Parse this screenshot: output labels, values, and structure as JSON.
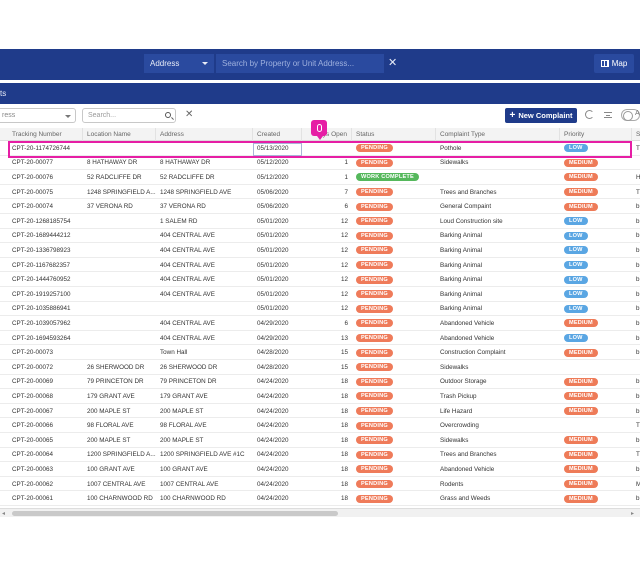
{
  "header": {
    "address_select": "Address",
    "search_placeholder": "Search by Property or Unit Address...",
    "map_label": "Map"
  },
  "subbar": {
    "title_fragment": "ts"
  },
  "filters": {
    "select_value": "ress",
    "search_placeholder": "Search...",
    "new_button": "New Complaint",
    "toggle_label": "A"
  },
  "columns": [
    "Tracking Number",
    "Location Name",
    "Address",
    "Created",
    "Days Open",
    "Status",
    "Complaint Type",
    "Priority",
    "S"
  ],
  "rows": [
    {
      "tracking": "CPT-20-1174726744",
      "location": "",
      "address": "",
      "created": "05/13/2020",
      "days": "",
      "status": "PENDING",
      "type": "Pothole",
      "priority": "LOW",
      "extra": "T"
    },
    {
      "tracking": "CPT-20-00077",
      "location": "8 HATHAWAY DR",
      "address": "8 HATHAWAY DR",
      "created": "05/12/2020",
      "days": "1",
      "status": "PENDING",
      "type": "Sidewalks",
      "priority": "MEDIUM",
      "extra": ""
    },
    {
      "tracking": "CPT-20-00076",
      "location": "52 RADCLIFFE DR",
      "address": "52 RADCLIFFE DR",
      "created": "05/12/2020",
      "days": "1",
      "status": "WORK COMPLETE",
      "type": "",
      "priority": "MEDIUM",
      "extra": "H"
    },
    {
      "tracking": "CPT-20-00075",
      "location": "1248 SPRINGFIELD A...",
      "address": "1248 SPRINGFIELD AVE",
      "created": "05/06/2020",
      "days": "7",
      "status": "PENDING",
      "type": "Trees and Branches",
      "priority": "MEDIUM",
      "extra": "T"
    },
    {
      "tracking": "CPT-20-00074",
      "location": "37 VERONA RD",
      "address": "37 VERONA RD",
      "created": "05/06/2020",
      "days": "6",
      "status": "PENDING",
      "type": "General Compaint",
      "priority": "MEDIUM",
      "extra": "b"
    },
    {
      "tracking": "CPT-20-1268185754",
      "location": "",
      "address": "1 SALEM RD",
      "created": "05/01/2020",
      "days": "12",
      "status": "PENDING",
      "type": "Loud Construction site",
      "priority": "LOW",
      "extra": "b"
    },
    {
      "tracking": "CPT-20-1689444212",
      "location": "",
      "address": "404 CENTRAL AVE",
      "created": "05/01/2020",
      "days": "12",
      "status": "PENDING",
      "type": "Barking Animal",
      "priority": "LOW",
      "extra": "b"
    },
    {
      "tracking": "CPT-20-1336798923",
      "location": "",
      "address": "404 CENTRAL AVE",
      "created": "05/01/2020",
      "days": "12",
      "status": "PENDING",
      "type": "Barking Animal",
      "priority": "LOW",
      "extra": "b"
    },
    {
      "tracking": "CPT-20-1167682357",
      "location": "",
      "address": "404 CENTRAL AVE",
      "created": "05/01/2020",
      "days": "12",
      "status": "PENDING",
      "type": "Barking Animal",
      "priority": "LOW",
      "extra": "b"
    },
    {
      "tracking": "CPT-20-1444760952",
      "location": "",
      "address": "404 CENTRAL AVE",
      "created": "05/01/2020",
      "days": "12",
      "status": "PENDING",
      "type": "Barking Animal",
      "priority": "LOW",
      "extra": "b"
    },
    {
      "tracking": "CPT-20-1919257100",
      "location": "",
      "address": "404 CENTRAL AVE",
      "created": "05/01/2020",
      "days": "12",
      "status": "PENDING",
      "type": "Barking Animal",
      "priority": "LOW",
      "extra": "b"
    },
    {
      "tracking": "CPT-20-1035886941",
      "location": "",
      "address": "",
      "created": "05/01/2020",
      "days": "12",
      "status": "PENDING",
      "type": "Barking Animal",
      "priority": "LOW",
      "extra": "b"
    },
    {
      "tracking": "CPT-20-1039057962",
      "location": "",
      "address": "404 CENTRAL AVE",
      "created": "04/29/2020",
      "days": "6",
      "status": "PENDING",
      "type": "Abandoned Vehicle",
      "priority": "MEDIUM",
      "extra": "b"
    },
    {
      "tracking": "CPT-20-1694593264",
      "location": "",
      "address": "404 CENTRAL AVE",
      "created": "04/29/2020",
      "days": "13",
      "status": "PENDING",
      "type": "Abandoned Vehicle",
      "priority": "LOW",
      "extra": "b"
    },
    {
      "tracking": "CPT-20-00073",
      "location": "",
      "address": "Town Hall",
      "created": "04/28/2020",
      "days": "15",
      "status": "PENDING",
      "type": "Construction Complaint",
      "priority": "MEDIUM",
      "extra": "b"
    },
    {
      "tracking": "CPT-20-00072",
      "location": "26 SHERWOOD DR",
      "address": "26 SHERWOOD DR",
      "created": "04/28/2020",
      "days": "15",
      "status": "PENDING",
      "type": "Sidewalks",
      "priority": "",
      "extra": ""
    },
    {
      "tracking": "CPT-20-00069",
      "location": "79 PRINCETON DR",
      "address": "79 PRINCETON DR",
      "created": "04/24/2020",
      "days": "18",
      "status": "PENDING",
      "type": "Outdoor Storage",
      "priority": "MEDIUM",
      "extra": "b"
    },
    {
      "tracking": "CPT-20-00068",
      "location": "179 GRANT AVE",
      "address": "179 GRANT AVE",
      "created": "04/24/2020",
      "days": "18",
      "status": "PENDING",
      "type": "Trash Pickup",
      "priority": "MEDIUM",
      "extra": "b"
    },
    {
      "tracking": "CPT-20-00067",
      "location": "200 MAPLE ST",
      "address": "200 MAPLE ST",
      "created": "04/24/2020",
      "days": "18",
      "status": "PENDING",
      "type": "Life Hazard",
      "priority": "MEDIUM",
      "extra": "b"
    },
    {
      "tracking": "CPT-20-00066",
      "location": "98 FLORAL AVE",
      "address": "98 FLORAL AVE",
      "created": "04/24/2020",
      "days": "18",
      "status": "PENDING",
      "type": "Overcrowding",
      "priority": "",
      "extra": "T"
    },
    {
      "tracking": "CPT-20-00065",
      "location": "200 MAPLE ST",
      "address": "200 MAPLE ST",
      "created": "04/24/2020",
      "days": "18",
      "status": "PENDING",
      "type": "Sidewalks",
      "priority": "MEDIUM",
      "extra": "b"
    },
    {
      "tracking": "CPT-20-00064",
      "location": "1200 SPRINGFIELD A...",
      "address": "1200 SPRINGFIELD AVE #1C",
      "created": "04/24/2020",
      "days": "18",
      "status": "PENDING",
      "type": "Trees and Branches",
      "priority": "MEDIUM",
      "extra": "T"
    },
    {
      "tracking": "CPT-20-00063",
      "location": "100 GRANT AVE",
      "address": "100 GRANT AVE",
      "created": "04/24/2020",
      "days": "18",
      "status": "PENDING",
      "type": "Abandoned Vehicle",
      "priority": "MEDIUM",
      "extra": "b"
    },
    {
      "tracking": "CPT-20-00062",
      "location": "1007 CENTRAL AVE",
      "address": "1007 CENTRAL AVE",
      "created": "04/24/2020",
      "days": "18",
      "status": "PENDING",
      "type": "Rodents",
      "priority": "MEDIUM",
      "extra": "M"
    },
    {
      "tracking": "CPT-20-00061",
      "location": "100 CHARNWOOD RD",
      "address": "100 CHARNWOOD RD",
      "created": "04/24/2020",
      "days": "18",
      "status": "PENDING",
      "type": "Grass and Weeds",
      "priority": "MEDIUM",
      "extra": "b"
    }
  ]
}
